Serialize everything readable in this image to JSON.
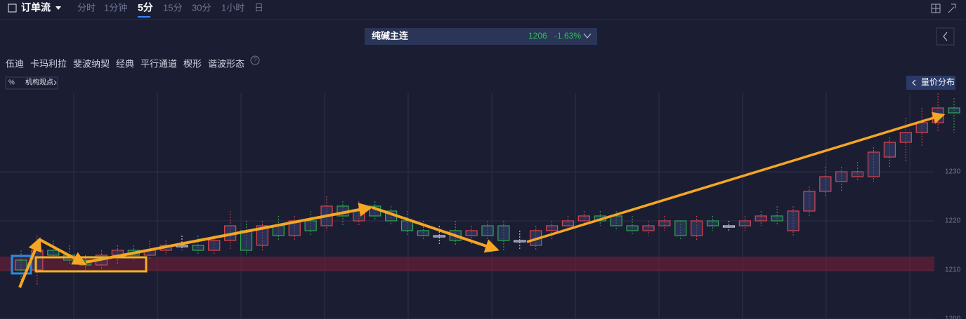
{
  "header": {
    "title": "订单流",
    "intervals": [
      "分时",
      "1分钟",
      "5分",
      "15分",
      "30分",
      "1小时",
      "日"
    ],
    "active_interval_index": 2
  },
  "symbol": {
    "name": "纯碱主连",
    "price": 1206,
    "change": "-1.63%"
  },
  "tools": [
    "伍迪",
    "卡玛利拉",
    "斐波纳契",
    "经典",
    "平行通道",
    "楔形",
    "谐波形态"
  ],
  "badge": "机构观点",
  "side_button": "量价分布",
  "chart_data": {
    "type": "candlestick",
    "ylim": [
      1200,
      1246
    ],
    "yticks": [
      1200,
      1210,
      1220,
      1230
    ],
    "up_color": "#e0444a",
    "down_color": "#2fa84f",
    "flat_color": "#cfd6e6",
    "open": [
      1212,
      1210,
      1214,
      1213,
      1212,
      1211,
      1213,
      1214,
      1213,
      1214,
      1215,
      1215,
      1214,
      1216,
      1218,
      1215,
      1219,
      1217,
      1220,
      1219,
      1223,
      1220,
      1223,
      1222,
      1220,
      1218,
      1217,
      1218,
      1217,
      1219,
      1219,
      1216,
      1215,
      1218,
      1219,
      1220,
      1221,
      1221,
      1219,
      1218,
      1219,
      1220,
      1217,
      1220,
      1219,
      1219,
      1220,
      1221,
      1218,
      1222,
      1226,
      1228,
      1229,
      1229,
      1233,
      1236,
      1238,
      1240,
      1243
    ],
    "high": [
      1214,
      1217,
      1216,
      1215,
      1213,
      1214,
      1215,
      1215,
      1216,
      1216,
      1217,
      1217,
      1217,
      1222,
      1220,
      1220,
      1221,
      1221,
      1222,
      1225,
      1224,
      1224,
      1224,
      1223,
      1222,
      1220,
      1219,
      1220,
      1219,
      1220,
      1220,
      1218,
      1219,
      1220,
      1221,
      1222,
      1222,
      1222,
      1221,
      1220,
      1221,
      1220,
      1221,
      1221,
      1220,
      1221,
      1222,
      1223,
      1223,
      1227,
      1231,
      1231,
      1232,
      1235,
      1237,
      1241,
      1243,
      1246,
      1245
    ],
    "low": [
      1206,
      1207,
      1212,
      1211,
      1210,
      1210,
      1211,
      1212,
      1212,
      1213,
      1214,
      1213,
      1213,
      1214,
      1213,
      1214,
      1216,
      1216,
      1217,
      1218,
      1219,
      1219,
      1220,
      1219,
      1217,
      1216,
      1215,
      1215,
      1215,
      1216,
      1214,
      1214,
      1214,
      1216,
      1218,
      1219,
      1219,
      1218,
      1217,
      1217,
      1218,
      1216,
      1216,
      1218,
      1218,
      1218,
      1219,
      1219,
      1217,
      1221,
      1225,
      1226,
      1228,
      1228,
      1231,
      1232,
      1235,
      1238,
      1238
    ],
    "close": [
      1210,
      1214,
      1213,
      1212,
      1211,
      1213,
      1214,
      1213,
      1214,
      1215,
      1215,
      1214,
      1216,
      1219,
      1214,
      1219,
      1217,
      1220,
      1218,
      1223,
      1221,
      1222,
      1221,
      1220,
      1218,
      1217,
      1217,
      1216,
      1218,
      1217,
      1216,
      1216,
      1218,
      1219,
      1220,
      1221,
      1220,
      1219,
      1218,
      1219,
      1220,
      1217,
      1220,
      1219,
      1219,
      1220,
      1221,
      1220,
      1222,
      1226,
      1229,
      1230,
      1230,
      1234,
      1236,
      1238,
      1240,
      1243,
      1242
    ]
  }
}
